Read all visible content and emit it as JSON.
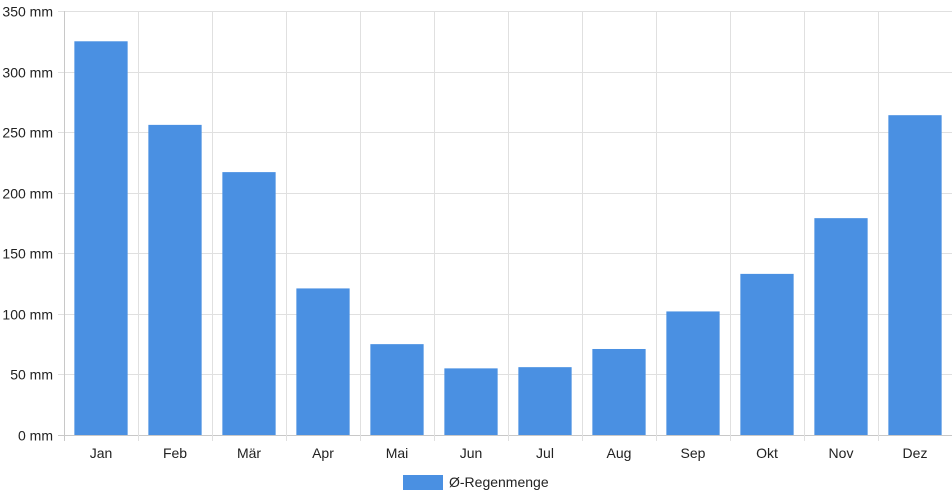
{
  "chart_data": {
    "type": "bar",
    "categories": [
      "Jan",
      "Feb",
      "Mär",
      "Apr",
      "Mai",
      "Jun",
      "Jul",
      "Aug",
      "Sep",
      "Okt",
      "Nov",
      "Dez"
    ],
    "series": [
      {
        "name": "Ø-Regenmenge",
        "values": [
          325,
          256,
          217,
          121,
          75,
          55,
          56,
          71,
          102,
          133,
          179,
          264
        ]
      }
    ],
    "ylim": [
      0,
      350
    ],
    "yticks": [
      0,
      50,
      100,
      150,
      200,
      250,
      300,
      350
    ],
    "y_unit": "mm",
    "grid": true,
    "legend_position": "bottom",
    "colors": {
      "bar": "#4a90e2",
      "grid": "#e0e0e0",
      "axis": "#c8c8c8"
    }
  }
}
